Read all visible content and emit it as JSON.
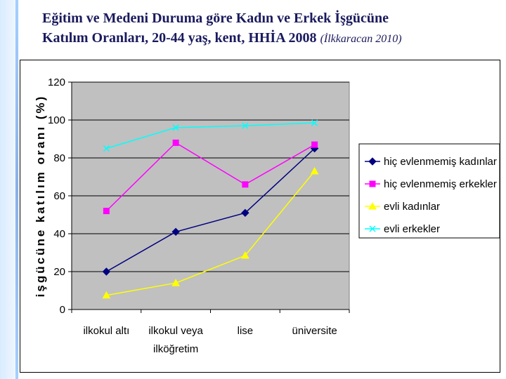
{
  "slide": {
    "title_line1": "Eğitim ve Medeni Duruma göre Kadın ve Erkek İşgücüne",
    "title_line2": "Katılım Oranları, 20-44 yaş, kent, HHİA 2008",
    "citation": "(İlkkaracan 2010)"
  },
  "chart_data": {
    "type": "line",
    "categories": [
      [
        "ilkokul altı"
      ],
      [
        "ilkokul veya",
        "ilköğretim"
      ],
      [
        "lise"
      ],
      [
        "üniversite"
      ]
    ],
    "ylabel": "işgücüne katılım oranı (%)",
    "xlabel": "",
    "ylim": [
      0,
      120
    ],
    "yticks": [
      0,
      20,
      40,
      60,
      80,
      100,
      120
    ],
    "grid": true,
    "legend_position": "right",
    "plot_background": "#c0c0c0",
    "series": [
      {
        "name": "hiç evlenmemiş kadınlar",
        "values": [
          20,
          41,
          51,
          85
        ],
        "color": "#000080",
        "marker": "diamond"
      },
      {
        "name": "hiç evlenmemiş erkekler",
        "values": [
          52,
          88,
          66,
          87
        ],
        "color": "#ff00ff",
        "marker": "square"
      },
      {
        "name": "evli kadınlar",
        "values": [
          7.5,
          14,
          28.5,
          73
        ],
        "color": "#ffff00",
        "marker": "triangle"
      },
      {
        "name": "evli erkekler",
        "values": [
          85,
          96,
          97,
          98.5
        ],
        "color": "#00ffff",
        "marker": "x"
      }
    ]
  }
}
